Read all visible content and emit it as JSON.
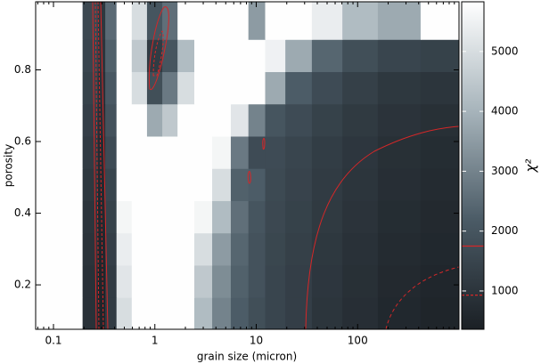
{
  "chart_data": {
    "type": "heatmap",
    "x_label": "grain size (micron)",
    "y_label": "porosity",
    "colorbar_label": "χ²",
    "x": [
      0.08,
      0.15,
      0.25,
      0.3,
      0.35,
      0.5,
      0.7,
      1,
      1.4,
      2,
      3,
      4.5,
      7,
      10,
      15,
      25,
      50,
      100,
      250,
      700
    ],
    "y": [
      0.12,
      0.21,
      0.3,
      0.39,
      0.48,
      0.57,
      0.66,
      0.75,
      0.84,
      0.93
    ],
    "z": [
      [
        5800,
        5800,
        900,
        500,
        1200,
        5000,
        5800,
        5800,
        5800,
        5800,
        4200,
        3000,
        2200,
        1800,
        1500,
        1300,
        1000,
        800,
        600,
        500
      ],
      [
        5800,
        5800,
        900,
        500,
        1200,
        5200,
        5800,
        5800,
        5800,
        5800,
        4500,
        3200,
        2300,
        1900,
        1500,
        1300,
        1050,
        850,
        650,
        550
      ],
      [
        5800,
        5800,
        950,
        550,
        1300,
        5400,
        5800,
        5800,
        5800,
        5800,
        5000,
        3500,
        2400,
        1900,
        1550,
        1350,
        1100,
        900,
        700,
        600
      ],
      [
        5800,
        5800,
        1000,
        600,
        1400,
        5600,
        5800,
        5800,
        5800,
        5800,
        5600,
        4200,
        2600,
        2000,
        1600,
        1400,
        1150,
        950,
        750,
        650
      ],
      [
        5800,
        5800,
        1100,
        650,
        1500,
        5800,
        5800,
        5800,
        5800,
        5800,
        5800,
        5000,
        2300,
        2200,
        1650,
        1450,
        1200,
        1000,
        800,
        700
      ],
      [
        5800,
        5800,
        1200,
        700,
        1700,
        5800,
        5800,
        5800,
        5800,
        5800,
        5800,
        5600,
        2800,
        1700,
        1700,
        1500,
        1250,
        1050,
        850,
        750
      ],
      [
        5800,
        5800,
        1300,
        800,
        1900,
        5800,
        5800,
        3800,
        4500,
        5800,
        5800,
        5800,
        5200,
        3000,
        2000,
        1700,
        1400,
        1150,
        950,
        850
      ],
      [
        5800,
        5800,
        1400,
        900,
        2100,
        5800,
        5000,
        1800,
        2800,
        5000,
        5800,
        5800,
        5800,
        5800,
        3800,
        2200,
        1700,
        1350,
        1100,
        1000
      ],
      [
        5800,
        5800,
        1500,
        1000,
        2300,
        5800,
        4500,
        1200,
        2000,
        4200,
        5800,
        5800,
        5800,
        5800,
        5500,
        3800,
        2400,
        1800,
        1500,
        1400
      ],
      [
        5800,
        5800,
        1600,
        1100,
        2500,
        5800,
        5000,
        2000,
        2600,
        5800,
        5800,
        5800,
        5800,
        3500,
        5800,
        5800,
        5400,
        4200,
        3800,
        5800
      ]
    ],
    "xlim": [
      0.0667,
      1000
    ],
    "xticks": [
      0.1,
      1,
      10,
      100
    ],
    "xscale": "log",
    "ylim": [
      0.076,
      0.99
    ],
    "yticks": [
      0.2,
      0.4,
      0.6,
      0.8
    ],
    "clim": [
      360,
      5830
    ],
    "cticks": [
      1000,
      2000,
      3000,
      4000,
      5000
    ],
    "colormap": [
      "#1b2025",
      "#4b5b66",
      "#a7b4bb",
      "#ffffff"
    ],
    "contour_levels": [
      1750,
      930
    ],
    "contour_color": "#d62728"
  }
}
